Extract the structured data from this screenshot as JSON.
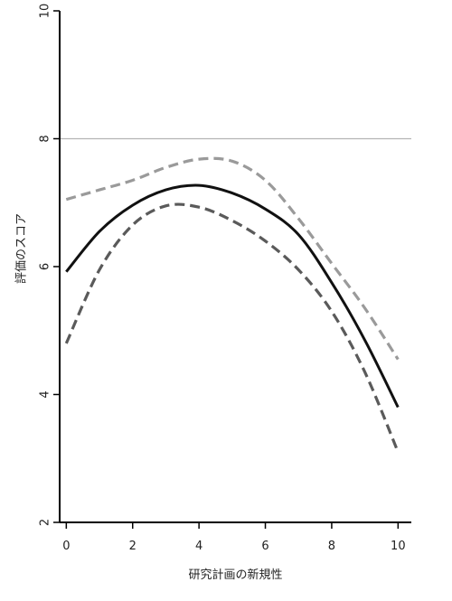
{
  "chart_data": {
    "type": "line",
    "xlabel": "研究計画の新規性",
    "ylabel": "評価のスコア",
    "xlim": [
      -0.2,
      10.4
    ],
    "ylim": [
      2,
      10
    ],
    "x_ticks": [
      0,
      2,
      4,
      6,
      8,
      10
    ],
    "y_ticks": [
      2,
      4,
      6,
      8,
      10
    ],
    "reference_line": {
      "y": 8,
      "color": "#b5b5b5"
    },
    "grid": false,
    "legend": "none",
    "series": [
      {
        "style": "solid",
        "color": "#111111",
        "x": [
          0,
          1,
          2,
          3,
          4,
          5,
          6,
          7,
          8,
          9,
          10
        ],
        "y": [
          5.92,
          6.55,
          6.96,
          7.2,
          7.27,
          7.15,
          6.9,
          6.5,
          5.75,
          4.85,
          3.8
        ]
      },
      {
        "style": "dashed",
        "color": "#9a9a9a",
        "x": [
          0,
          1,
          2,
          3,
          4,
          5,
          6,
          7,
          8,
          9,
          10
        ],
        "y": [
          7.05,
          7.2,
          7.35,
          7.55,
          7.68,
          7.65,
          7.35,
          6.75,
          6.05,
          5.35,
          4.55
        ]
      },
      {
        "style": "dashed",
        "color": "#5a5a5a",
        "x": [
          0,
          1,
          2,
          3,
          4,
          5,
          6,
          7,
          8,
          9,
          10
        ],
        "y": [
          4.8,
          5.95,
          6.65,
          6.95,
          6.93,
          6.72,
          6.4,
          5.95,
          5.3,
          4.35,
          3.1
        ]
      }
    ]
  }
}
